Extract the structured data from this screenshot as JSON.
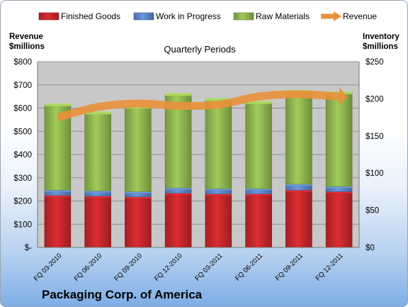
{
  "chart_data": {
    "type": "bar",
    "stacked": true,
    "title": "Quarterly Periods",
    "company": "Packaging Corp. of America",
    "categories": [
      "FQ 03-2010",
      "FQ 06-2010",
      "FQ 09-2010",
      "FQ 12-2010",
      "FQ 03-2011",
      "FQ 06-2011",
      "FQ 09-2011",
      "FQ 12-2011"
    ],
    "left_axis": {
      "label": "Revenue\n$millions",
      "ylim": [
        0,
        800
      ],
      "ticks": [
        "$-",
        "$100",
        "$200",
        "$300",
        "$400",
        "$500",
        "$600",
        "$700",
        "$800"
      ]
    },
    "right_axis": {
      "label": "Inventory\n$millions",
      "ylim": [
        0,
        250
      ],
      "ticks": [
        "$0",
        "$50",
        "$100",
        "$150",
        "$200",
        "$250"
      ]
    },
    "series": [
      {
        "name": "Finished Goods",
        "type": "bar",
        "axis": "right",
        "color": "#c0262a",
        "values": [
          70,
          69,
          68,
          73,
          72,
          72,
          77,
          75
        ]
      },
      {
        "name": "Work in Progress",
        "type": "bar",
        "axis": "right",
        "color": "#5b82c1",
        "values": [
          7,
          7,
          7,
          7,
          7,
          7,
          8,
          7
        ]
      },
      {
        "name": "Raw Materials",
        "type": "bar",
        "axis": "right",
        "color": "#8bb14d",
        "values": [
          115,
          105,
          114,
          126,
          120,
          116,
          125,
          126
        ]
      },
      {
        "name": "Revenue",
        "type": "line",
        "axis": "left",
        "color": "#e8913b",
        "values": [
          560,
          605,
          620,
          610,
          615,
          650,
          660,
          650
        ]
      }
    ],
    "legend": "top",
    "grid": true
  }
}
